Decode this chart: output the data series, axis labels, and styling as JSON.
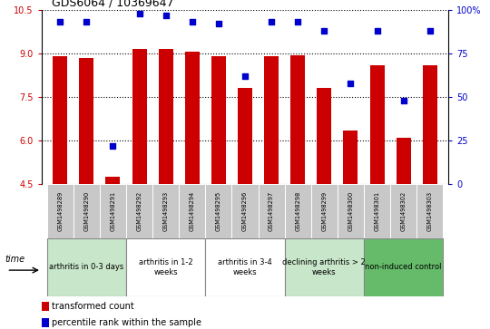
{
  "title": "GDS6064 / 10369647",
  "samples": [
    "GSM1498289",
    "GSM1498290",
    "GSM1498291",
    "GSM1498292",
    "GSM1498293",
    "GSM1498294",
    "GSM1498295",
    "GSM1498296",
    "GSM1498297",
    "GSM1498298",
    "GSM1498299",
    "GSM1498300",
    "GSM1498301",
    "GSM1498302",
    "GSM1498303"
  ],
  "transformed_count": [
    8.9,
    8.85,
    4.75,
    9.15,
    9.15,
    9.05,
    8.9,
    7.8,
    8.9,
    8.95,
    7.8,
    6.35,
    8.6,
    6.1,
    8.6
  ],
  "percentile_rank": [
    93,
    93,
    22,
    98,
    97,
    93,
    92,
    62,
    93,
    93,
    88,
    58,
    88,
    48,
    88
  ],
  "ylim_left": [
    4.5,
    10.5
  ],
  "ylim_right": [
    0,
    100
  ],
  "yticks_left": [
    4.5,
    6.0,
    7.5,
    9.0,
    10.5
  ],
  "yticks_right": [
    0,
    25,
    50,
    75,
    100
  ],
  "bar_color": "#cc0000",
  "dot_color": "#0000cc",
  "groups": [
    {
      "label": "arthritis in 0-3 days",
      "start": 0,
      "end": 3,
      "color": "#c8e6c9"
    },
    {
      "label": "arthritis in 1-2\nweeks",
      "start": 3,
      "end": 6,
      "color": "#ffffff"
    },
    {
      "label": "arthritis in 3-4\nweeks",
      "start": 6,
      "end": 9,
      "color": "#ffffff"
    },
    {
      "label": "declining arthritis > 2\nweeks",
      "start": 9,
      "end": 12,
      "color": "#c8e6c9"
    },
    {
      "label": "non-induced control",
      "start": 12,
      "end": 15,
      "color": "#66bb6a"
    }
  ],
  "legend_bar_label": "transformed count",
  "legend_dot_label": "percentile rank within the sample",
  "time_label": "time",
  "bar_color_hex": "#cc0000",
  "dot_color_hex": "#0000cc",
  "left_tick_color": "#cc0000",
  "right_tick_color": "#0000cc",
  "sample_box_color": "#c8c8c8",
  "fig_width": 5.4,
  "fig_height": 3.63
}
